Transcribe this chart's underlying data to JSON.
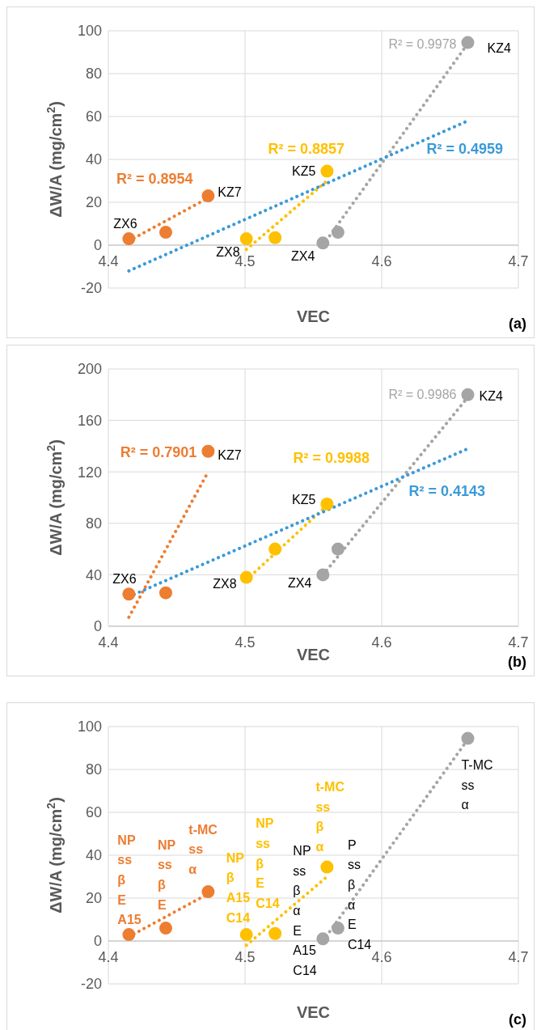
{
  "chart_data": [
    {
      "type": "scatter",
      "xlabel": "VEC",
      "ylabel": "ΔW/A (mg/cm$^{2}$)",
      "xlim": [
        4.4,
        4.7
      ],
      "xticks": [
        4.4,
        4.5,
        4.6,
        4.7
      ],
      "ylim": [
        -20,
        100
      ],
      "yticks": [
        -20,
        0,
        20,
        40,
        60,
        80,
        100
      ],
      "grid": true,
      "marker": "circle",
      "series": [
        {
          "color": "#ed7d31",
          "x": [
            4.415,
            4.442,
            4.473
          ],
          "values": [
            3,
            6,
            23
          ]
        },
        {
          "color": "#ffc000",
          "x": [
            4.501,
            4.522,
            4.56
          ],
          "values": [
            3,
            3.5,
            34.5
          ]
        },
        {
          "color": "#a5a5a5",
          "x": [
            4.557,
            4.568,
            4.663
          ],
          "values": [
            1,
            6,
            94.5
          ]
        },
        {
          "type": "line",
          "line_style": "dotted",
          "marker": "none",
          "color": "#ed7d31",
          "x": [
            4.415,
            4.473
          ],
          "values": [
            2,
            22
          ]
        },
        {
          "type": "line",
          "line_style": "dotted",
          "marker": "none",
          "color": "#ffc000",
          "x": [
            4.501,
            4.56
          ],
          "values": [
            -2,
            30
          ]
        },
        {
          "type": "line",
          "line_style": "dotted",
          "marker": "none",
          "color": "#a5a5a5",
          "x": [
            4.557,
            4.663
          ],
          "values": [
            0,
            94
          ]
        },
        {
          "type": "line",
          "line_style": "dotted",
          "marker": "none",
          "color": "#3a9ad9",
          "x": [
            4.415,
            4.663
          ],
          "values": [
            -12,
            58
          ]
        }
      ],
      "annotations": [
        {
          "text": "R² = 0.9978",
          "x": 4.663,
          "y": 94
        },
        {
          "text": "KZ4",
          "x": 4.663,
          "y": 94.5
        },
        "R² = 0.8954",
        {
          "text": "KZ7",
          "x": 4.473,
          "y": 23
        },
        {
          "text": "ZX6",
          "x": 4.415,
          "y": 3
        },
        {
          "text": "R² = 0.8857",
          "x": 4.56,
          "y": 30
        },
        {
          "text": "KZ5",
          "x": 4.56,
          "y": 34.5
        },
        {
          "text": "ZX8",
          "x": 4.501,
          "y": 3
        },
        {
          "text": "ZX4",
          "x": 4.557,
          "y": 1
        },
        {
          "text": "R² = 0.4959",
          "x": 4.663,
          "y": 58
        },
        "(a)"
      ]
    },
    {
      "type": "scatter",
      "xlabel": "VEC",
      "ylabel": "ΔW/A (mg/cm$^{2}$)",
      "xlim": [
        4.4,
        4.7
      ],
      "xticks": [
        4.4,
        4.5,
        4.6,
        4.7
      ],
      "ylim": [
        0,
        200
      ],
      "yticks": [
        0,
        40,
        80,
        120,
        160,
        200
      ],
      "grid": true,
      "marker": "circle",
      "series": [
        {
          "color": "#ed7d31",
          "x": [
            4.415,
            4.442,
            4.473
          ],
          "values": [
            25,
            26,
            136
          ]
        },
        {
          "color": "#ffc000",
          "x": [
            4.501,
            4.522,
            4.56
          ],
          "values": [
            38,
            60,
            95
          ]
        },
        {
          "color": "#a5a5a5",
          "x": [
            4.557,
            4.568,
            4.663
          ],
          "values": [
            40,
            60,
            180
          ]
        },
        {
          "type": "line",
          "line_style": "dotted",
          "marker": "none",
          "color": "#ed7d31",
          "x": [
            4.415,
            4.473
          ],
          "values": [
            7,
            120
          ]
        },
        {
          "type": "line",
          "line_style": "dotted",
          "marker": "none",
          "color": "#ffc000",
          "x": [
            4.501,
            4.56
          ],
          "values": [
            36,
            94
          ]
        },
        {
          "type": "line",
          "line_style": "dotted",
          "marker": "none",
          "color": "#a5a5a5",
          "x": [
            4.557,
            4.663
          ],
          "values": [
            40,
            178
          ]
        },
        {
          "type": "line",
          "line_style": "dotted",
          "marker": "none",
          "color": "#3a9ad9",
          "x": [
            4.415,
            4.663
          ],
          "values": [
            23,
            138
          ]
        }
      ],
      "annotations": [
        {
          "text": "R² = 0.9986",
          "x": 4.663,
          "y": 178
        },
        {
          "text": "KZ4",
          "x": 4.663,
          "y": 180
        },
        {
          "text": "R² = 0.7901",
          "x": 4.473,
          "y": 120
        },
        {
          "text": "KZ7",
          "x": 4.473,
          "y": 136
        },
        {
          "text": "R² = 0.9988",
          "x": 4.56,
          "y": 94
        },
        {
          "text": "KZ5",
          "x": 4.56,
          "y": 95
        },
        {
          "text": "R² = 0.4143",
          "x": 4.663,
          "y": 138
        },
        {
          "text": "ZX6",
          "x": 4.415,
          "y": 25
        },
        {
          "text": "ZX8",
          "x": 4.501,
          "y": 38
        },
        {
          "text": "ZX4",
          "x": 4.557,
          "y": 40
        },
        "(b)"
      ]
    },
    {
      "type": "scatter",
      "xlabel": "VEC",
      "ylabel": "ΔW/A (mg/cm$^{2}$)",
      "xlim": [
        4.4,
        4.7
      ],
      "xticks": [
        4.4,
        4.5,
        4.6,
        4.7
      ],
      "ylim": [
        -20,
        100
      ],
      "yticks": [
        -20,
        0,
        20,
        40,
        60,
        80,
        100
      ],
      "grid": true,
      "marker": "circle",
      "series": [
        {
          "color": "#ed7d31",
          "x": [
            4.415,
            4.442,
            4.473
          ],
          "values": [
            3,
            6,
            23
          ]
        },
        {
          "color": "#ffc000",
          "x": [
            4.501,
            4.522,
            4.56
          ],
          "values": [
            3,
            3.5,
            34.5
          ]
        },
        {
          "color": "#a5a5a5",
          "x": [
            4.557,
            4.568,
            4.663
          ],
          "values": [
            1,
            6,
            94.5
          ]
        },
        {
          "type": "line",
          "line_style": "dotted",
          "marker": "none",
          "color": "#ed7d31",
          "x": [
            4.415,
            4.473
          ],
          "values": [
            2,
            22
          ]
        },
        {
          "type": "line",
          "line_style": "dotted",
          "marker": "none",
          "color": "#ffc000",
          "x": [
            4.501,
            4.56
          ],
          "values": [
            -2,
            30
          ]
        },
        {
          "type": "line",
          "line_style": "dotted",
          "marker": "none",
          "color": "#a5a5a5",
          "x": [
            4.557,
            4.663
          ],
          "values": [
            0,
            94
          ]
        }
      ],
      "annotations": [
        {
          "text": "NP\nss\nβ\nE\nA15",
          "x": 4.415,
          "y": 3
        },
        {
          "text": "NP\nss\nβ\nE",
          "x": 4.442,
          "y": 6
        },
        {
          "text": "t-MC\nss\nα",
          "x": 4.473,
          "y": 23
        },
        {
          "text": "NP\nβ\nA15\nC14",
          "x": 4.501,
          "y": 3
        },
        {
          "text": "NP\nss\nβ\nE\nC14",
          "x": 4.522,
          "y": 3.5
        },
        {
          "text": "NP\nss\nβ\nα\nE\nA15\nC14",
          "x": 4.557,
          "y": 1
        },
        {
          "text": "t-MC\nss\nβ\nα",
          "x": 4.56,
          "y": 34.5
        },
        {
          "text": "P\nss\nβ\nα\nE\nC14",
          "x": 4.568,
          "y": 6
        },
        {
          "text": "T-MC\nss\nα",
          "x": 4.663,
          "y": 94.5
        },
        "(c)"
      ]
    }
  ]
}
